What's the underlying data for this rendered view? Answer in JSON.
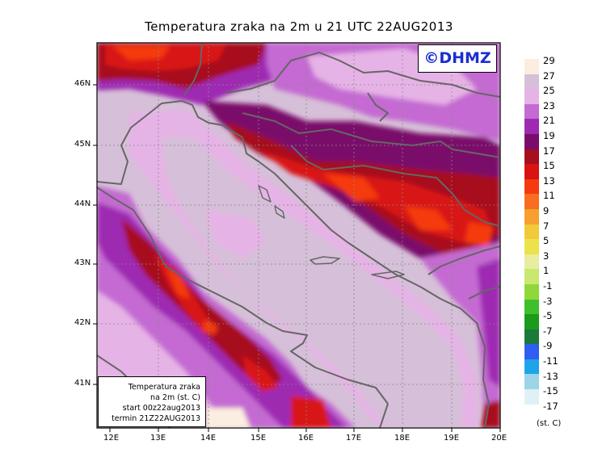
{
  "title": "Temperatura zraka na 2m u 21 UTC 22AUG2013",
  "logo_text": "©DHMZ",
  "info_lines": [
    "Temperatura zraka",
    "na 2m (st. C)",
    "start 00z22aug2013",
    "termin 21Z22AUG2013"
  ],
  "units": "(st. C)",
  "x_ticks": [
    "12E",
    "13E",
    "14E",
    "15E",
    "16E",
    "17E",
    "18E",
    "19E",
    "20E"
  ],
  "y_ticks": [
    "41N",
    "42N",
    "43N",
    "44N",
    "45N",
    "46N"
  ],
  "colorbar": {
    "labels": [
      "29",
      "27",
      "25",
      "23",
      "21",
      "19",
      "17",
      "15",
      "13",
      "11",
      "9",
      "7",
      "5",
      "3",
      "1",
      "-1",
      "-3",
      "-5",
      "-7",
      "-9",
      "-11",
      "-13",
      "-15",
      "-17"
    ],
    "colors": [
      "#fbeee0",
      "#d6bfd8",
      "#e6b3e6",
      "#c46ad2",
      "#9e2ab2",
      "#7a0d6a",
      "#a70e1e",
      "#d91212",
      "#f53a10",
      "#f86d20",
      "#f5a030",
      "#f2c93a",
      "#eee24c",
      "#e8eda0",
      "#c8e870",
      "#8fd83a",
      "#3fbf2c",
      "#1b9a1b",
      "#1a7a3a",
      "#2f5ef0",
      "#1ea4e8",
      "#9ed4e8",
      "#dff1f6"
    ]
  }
}
